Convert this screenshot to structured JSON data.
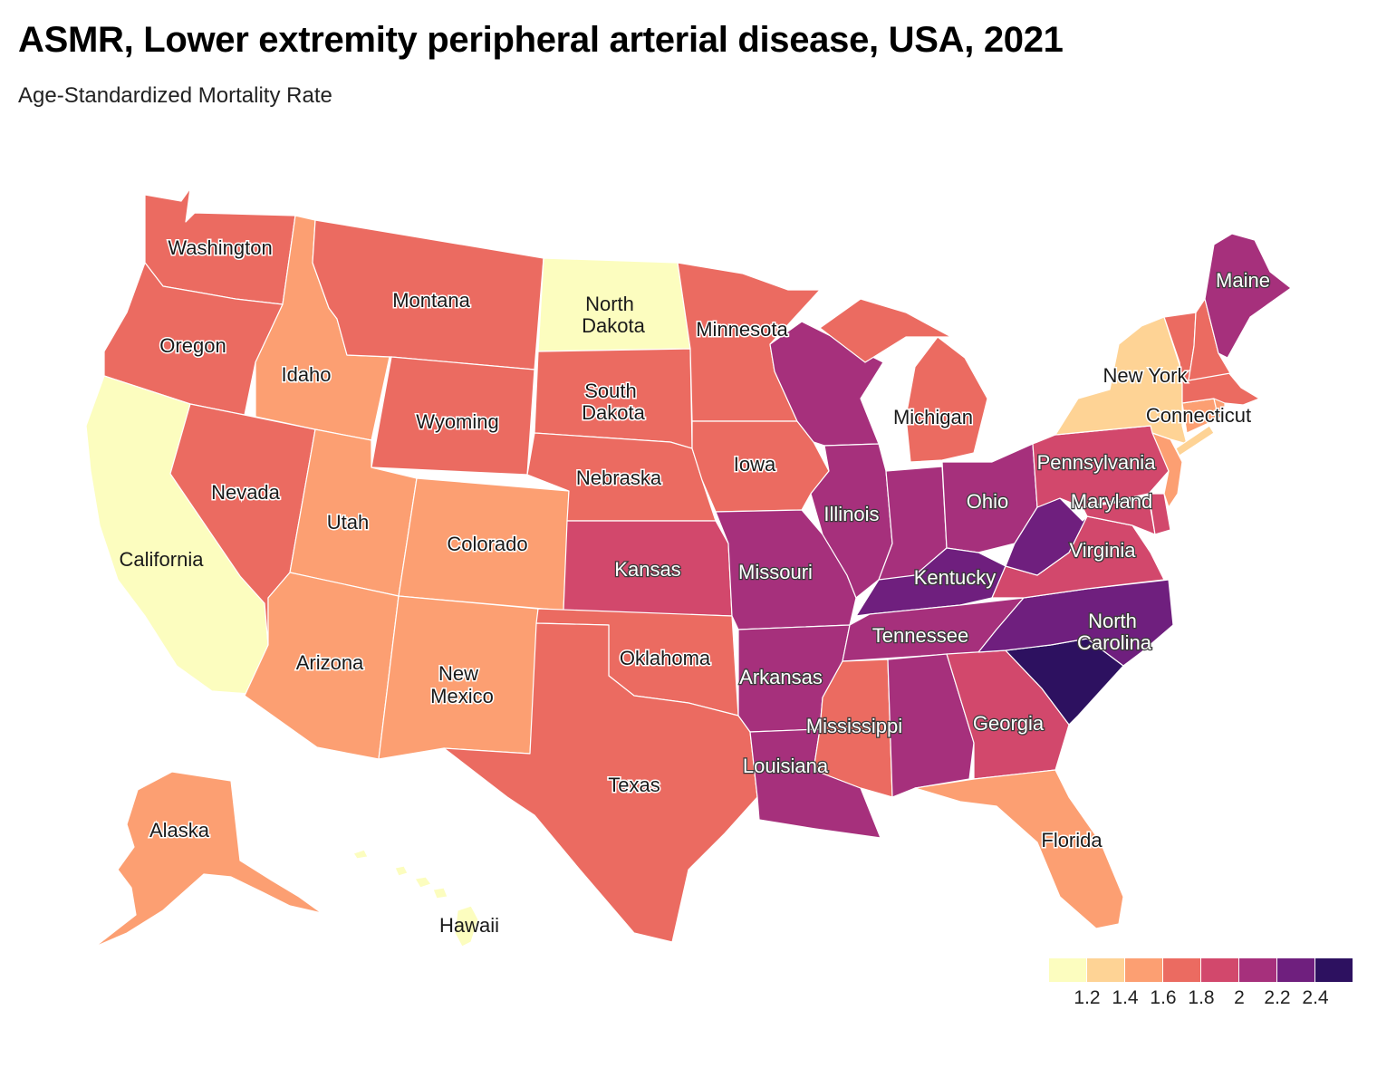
{
  "title": "ASMR, Lower extremity peripheral arterial disease, USA, 2021",
  "subtitle": "Age-Standardized Mortality Rate",
  "colors": {
    "b1": "#fcfdbf",
    "b2": "#fed395",
    "b3": "#fc9f72",
    "b4": "#eb6b61",
    "b5": "#d2486c",
    "b6": "#a6307c",
    "b7": "#6f1f7e",
    "b8": "#2d1160"
  },
  "legend": {
    "bins": [
      "b1",
      "b2",
      "b3",
      "b4",
      "b5",
      "b6",
      "b7",
      "b8"
    ],
    "ticks": [
      "1.2",
      "1.4",
      "1.6",
      "1.8",
      "2",
      "2.2",
      "2.4"
    ]
  },
  "states": {
    "washington": {
      "name": "Washington",
      "bin": "b4"
    },
    "oregon": {
      "name": "Oregon",
      "bin": "b4"
    },
    "california": {
      "name": "California",
      "bin": "b1"
    },
    "nevada": {
      "name": "Nevada",
      "bin": "b4"
    },
    "idaho": {
      "name": "Idaho",
      "bin": "b3"
    },
    "montana": {
      "name": "Montana",
      "bin": "b4"
    },
    "wyoming": {
      "name": "Wyoming",
      "bin": "b4"
    },
    "utah": {
      "name": "Utah",
      "bin": "b3"
    },
    "colorado": {
      "name": "Colorado",
      "bin": "b3"
    },
    "arizona": {
      "name": "Arizona",
      "bin": "b3"
    },
    "new_mexico": {
      "name": "New Mexico",
      "bin": "b3"
    },
    "north_dakota": {
      "name": "North Dakota",
      "bin": "b1"
    },
    "south_dakota": {
      "name": "South Dakota",
      "bin": "b4"
    },
    "nebraska": {
      "name": "Nebraska",
      "bin": "b4"
    },
    "kansas": {
      "name": "Kansas",
      "bin": "b5"
    },
    "oklahoma": {
      "name": "Oklahoma",
      "bin": "b4"
    },
    "texas": {
      "name": "Texas",
      "bin": "b4"
    },
    "minnesota": {
      "name": "Minnesota",
      "bin": "b4"
    },
    "iowa": {
      "name": "Iowa",
      "bin": "b4"
    },
    "missouri": {
      "name": "Missouri",
      "bin": "b6"
    },
    "arkansas": {
      "name": "Arkansas",
      "bin": "b6"
    },
    "louisiana": {
      "name": "Louisiana",
      "bin": "b6"
    },
    "wisconsin": {
      "name": "Wisconsin",
      "bin": "b6"
    },
    "illinois": {
      "name": "Illinois",
      "bin": "b6"
    },
    "michigan": {
      "name": "Michigan",
      "bin": "b4"
    },
    "indiana": {
      "name": "Indiana",
      "bin": "b6"
    },
    "ohio": {
      "name": "Ohio",
      "bin": "b6"
    },
    "kentucky": {
      "name": "Kentucky",
      "bin": "b7"
    },
    "tennessee": {
      "name": "Tennessee",
      "bin": "b6"
    },
    "mississippi": {
      "name": "Mississippi",
      "bin": "b4"
    },
    "alabama": {
      "name": "Alabama",
      "bin": "b6"
    },
    "georgia": {
      "name": "Georgia",
      "bin": "b5"
    },
    "florida": {
      "name": "Florida",
      "bin": "b3"
    },
    "south_carolina": {
      "name": "South Carolina",
      "bin": "b8"
    },
    "north_carolina": {
      "name": "North Carolina",
      "bin": "b7"
    },
    "virginia": {
      "name": "Virginia",
      "bin": "b5"
    },
    "west_virginia": {
      "name": "West Virginia",
      "bin": "b7"
    },
    "maryland": {
      "name": "Maryland",
      "bin": "b5"
    },
    "delaware": {
      "name": "Delaware",
      "bin": "b5"
    },
    "pennsylvania": {
      "name": "Pennsylvania",
      "bin": "b5"
    },
    "new_jersey": {
      "name": "New Jersey",
      "bin": "b3"
    },
    "new_york": {
      "name": "New York",
      "bin": "b2"
    },
    "connecticut": {
      "name": "Connecticut",
      "bin": "b3"
    },
    "rhode_island": {
      "name": "Rhode Island",
      "bin": "b3"
    },
    "massachusetts": {
      "name": "Massachusetts",
      "bin": "b4"
    },
    "vermont": {
      "name": "Vermont",
      "bin": "b4"
    },
    "new_hampshire": {
      "name": "New Hampshire",
      "bin": "b4"
    },
    "maine": {
      "name": "Maine",
      "bin": "b6"
    },
    "alaska": {
      "name": "Alaska",
      "bin": "b3"
    },
    "hawaii": {
      "name": "Hawaii",
      "bin": "b1"
    }
  },
  "labels": {
    "washington": "Washington",
    "oregon": "Oregon",
    "california": "California",
    "nevada": "Nevada",
    "idaho": "Idaho",
    "montana": "Montana",
    "wyoming": "Wyoming",
    "utah": "Utah",
    "colorado": "Colorado",
    "arizona": "Arizona",
    "new_mexico_1": "New",
    "new_mexico_2": "Mexico",
    "north_dakota_1": "North",
    "north_dakota_2": "Dakota",
    "south_dakota_1": "South",
    "south_dakota_2": "Dakota",
    "nebraska": "Nebraska",
    "kansas": "Kansas",
    "oklahoma": "Oklahoma",
    "texas": "Texas",
    "minnesota": "Minnesota",
    "iowa": "Iowa",
    "missouri": "Missouri",
    "arkansas": "Arkansas",
    "louisiana": "Louisiana",
    "illinois": "Illinois",
    "michigan": "Michigan",
    "ohio": "Ohio",
    "kentucky": "Kentucky",
    "tennessee": "Tennessee",
    "mississippi": "Mississippi",
    "georgia": "Georgia",
    "florida": "Florida",
    "north_carolina_1": "North",
    "north_carolina_2": "Carolina",
    "virginia": "Virginia",
    "maryland": "Maryland",
    "pennsylvania": "Pennsylvania",
    "new_york": "New York",
    "connecticut": "Connecticut",
    "maine": "Maine",
    "alaska": "Alaska",
    "hawaii": "Hawaii"
  }
}
